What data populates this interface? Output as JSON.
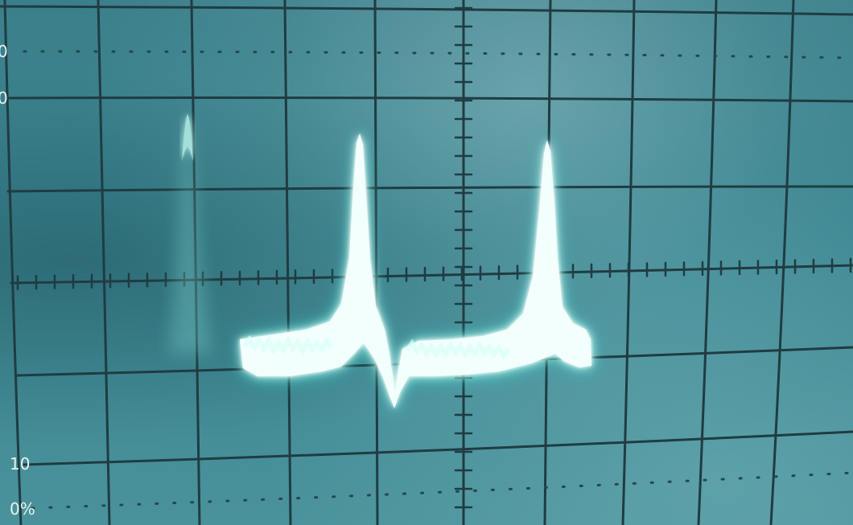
{
  "graticule_labels": {
    "ref_100_partial": "0",
    "ref_90_partial": "0",
    "ref_10": "10",
    "ref_0_pct": "0%"
  },
  "colors": {
    "screen_background": "#3a8590",
    "graticule_line": "#1e3b40",
    "trace_core": "#f4fffd",
    "trace_glow": "#33e8d8"
  },
  "icons": {
    "graticule": "oscilloscope-graticule",
    "trace": "waveform-trace"
  }
}
